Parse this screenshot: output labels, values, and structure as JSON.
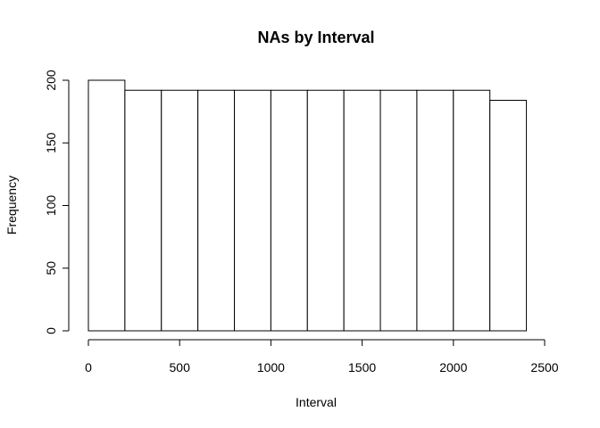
{
  "chart_data": {
    "type": "bar",
    "title": "NAs by Interval",
    "xlabel": "Interval",
    "ylabel": "Frequency",
    "bin_edges": [
      0,
      200,
      400,
      600,
      800,
      1000,
      1200,
      1400,
      1600,
      1800,
      2000,
      2200,
      2400
    ],
    "values": [
      200,
      192,
      192,
      192,
      192,
      192,
      192,
      192,
      192,
      192,
      192,
      184
    ],
    "xlim": [
      0,
      2500
    ],
    "ylim": [
      0,
      200
    ],
    "x_ticks": [
      0,
      500,
      1000,
      1500,
      2000,
      2500
    ],
    "y_ticks": [
      0,
      50,
      100,
      150,
      200
    ],
    "grid": false,
    "colors": {
      "bar_fill": "#ffffff",
      "bar_stroke": "#000000"
    }
  }
}
